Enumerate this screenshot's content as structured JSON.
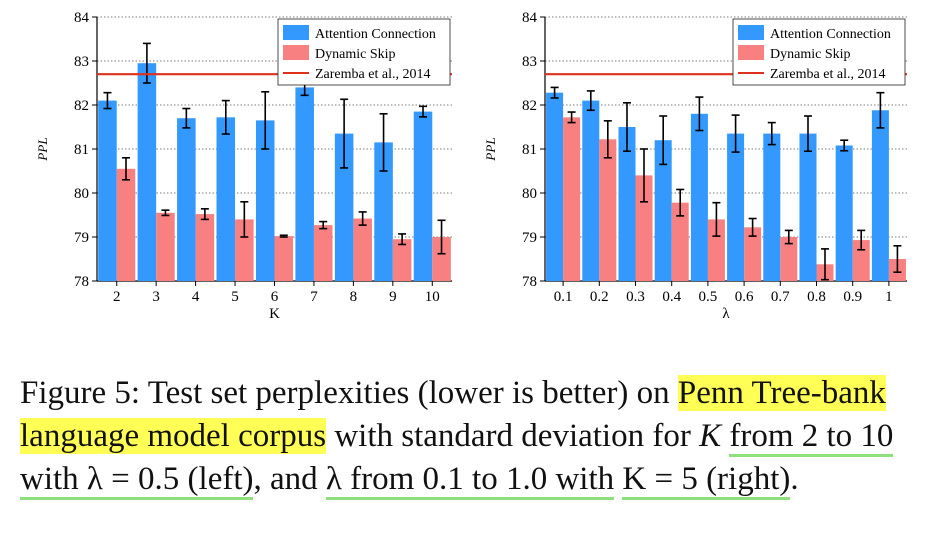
{
  "colors": {
    "attention": "#3399ff",
    "skip": "#f88080",
    "baseline": "#e0301e",
    "highlight": "#ffff55",
    "underline": "#8ee07d"
  },
  "chart_data": [
    {
      "type": "bar",
      "ylabel": "PPL",
      "xlabel": "K",
      "ylim": [
        78,
        84
      ],
      "yticks": [
        78,
        79,
        80,
        81,
        82,
        83,
        84
      ],
      "grid": "horizontal dotted",
      "legend_position": "top-right",
      "categories": [
        "2",
        "3",
        "4",
        "5",
        "6",
        "7",
        "8",
        "9",
        "10"
      ],
      "series": [
        {
          "name": "Attention Connection",
          "values": [
            82.1,
            82.95,
            81.7,
            81.72,
            81.65,
            82.4,
            81.35,
            81.15,
            81.85
          ],
          "error": [
            0.18,
            0.45,
            0.22,
            0.38,
            0.65,
            0.18,
            0.78,
            0.65,
            0.12
          ]
        },
        {
          "name": "Dynamic Skip",
          "values": [
            80.55,
            79.55,
            79.52,
            79.4,
            79.02,
            79.27,
            79.42,
            78.95,
            79.0
          ],
          "error": [
            0.25,
            0.06,
            0.12,
            0.4,
            0.02,
            0.08,
            0.15,
            0.12,
            0.38
          ]
        }
      ],
      "reference": {
        "name": "Zaremba et al., 2014",
        "value": 82.7
      }
    },
    {
      "type": "bar",
      "ylabel": "PPL",
      "xlabel": "λ",
      "ylim": [
        78,
        84
      ],
      "yticks": [
        78,
        79,
        80,
        81,
        82,
        83,
        84
      ],
      "grid": "horizontal dotted",
      "legend_position": "top-right",
      "categories": [
        "0.1",
        "0.2",
        "0.3",
        "0.4",
        "0.5",
        "0.6",
        "0.7",
        "0.8",
        "0.9",
        "1"
      ],
      "series": [
        {
          "name": "Attention Connection",
          "values": [
            82.28,
            82.1,
            81.5,
            81.2,
            81.8,
            81.35,
            81.35,
            81.35,
            81.08,
            81.88
          ],
          "error": [
            0.12,
            0.22,
            0.55,
            0.55,
            0.38,
            0.42,
            0.25,
            0.4,
            0.12,
            0.4
          ]
        },
        {
          "name": "Dynamic Skip",
          "values": [
            81.72,
            81.22,
            80.4,
            79.78,
            79.4,
            79.22,
            79.0,
            78.38,
            78.93,
            78.5
          ],
          "error": [
            0.12,
            0.42,
            0.6,
            0.3,
            0.38,
            0.2,
            0.15,
            0.35,
            0.22,
            0.3
          ]
        }
      ],
      "reference": {
        "name": "Zaremba et al., 2014",
        "value": 82.7
      }
    }
  ],
  "caption": {
    "prefix": "Figure 5: Test set perplexities (lower is better) on ",
    "highlight": "Penn Tree-bank language model corpus",
    "middle": " with standard deviation for ",
    "math_k": "K",
    "underline1": "from 2 to 10 with λ = 0.5 (left)",
    "and": ", and ",
    "underline2": "λ from 0.1 to 1.0 with",
    "underline3": "K = 5 (right)",
    "end": "."
  }
}
